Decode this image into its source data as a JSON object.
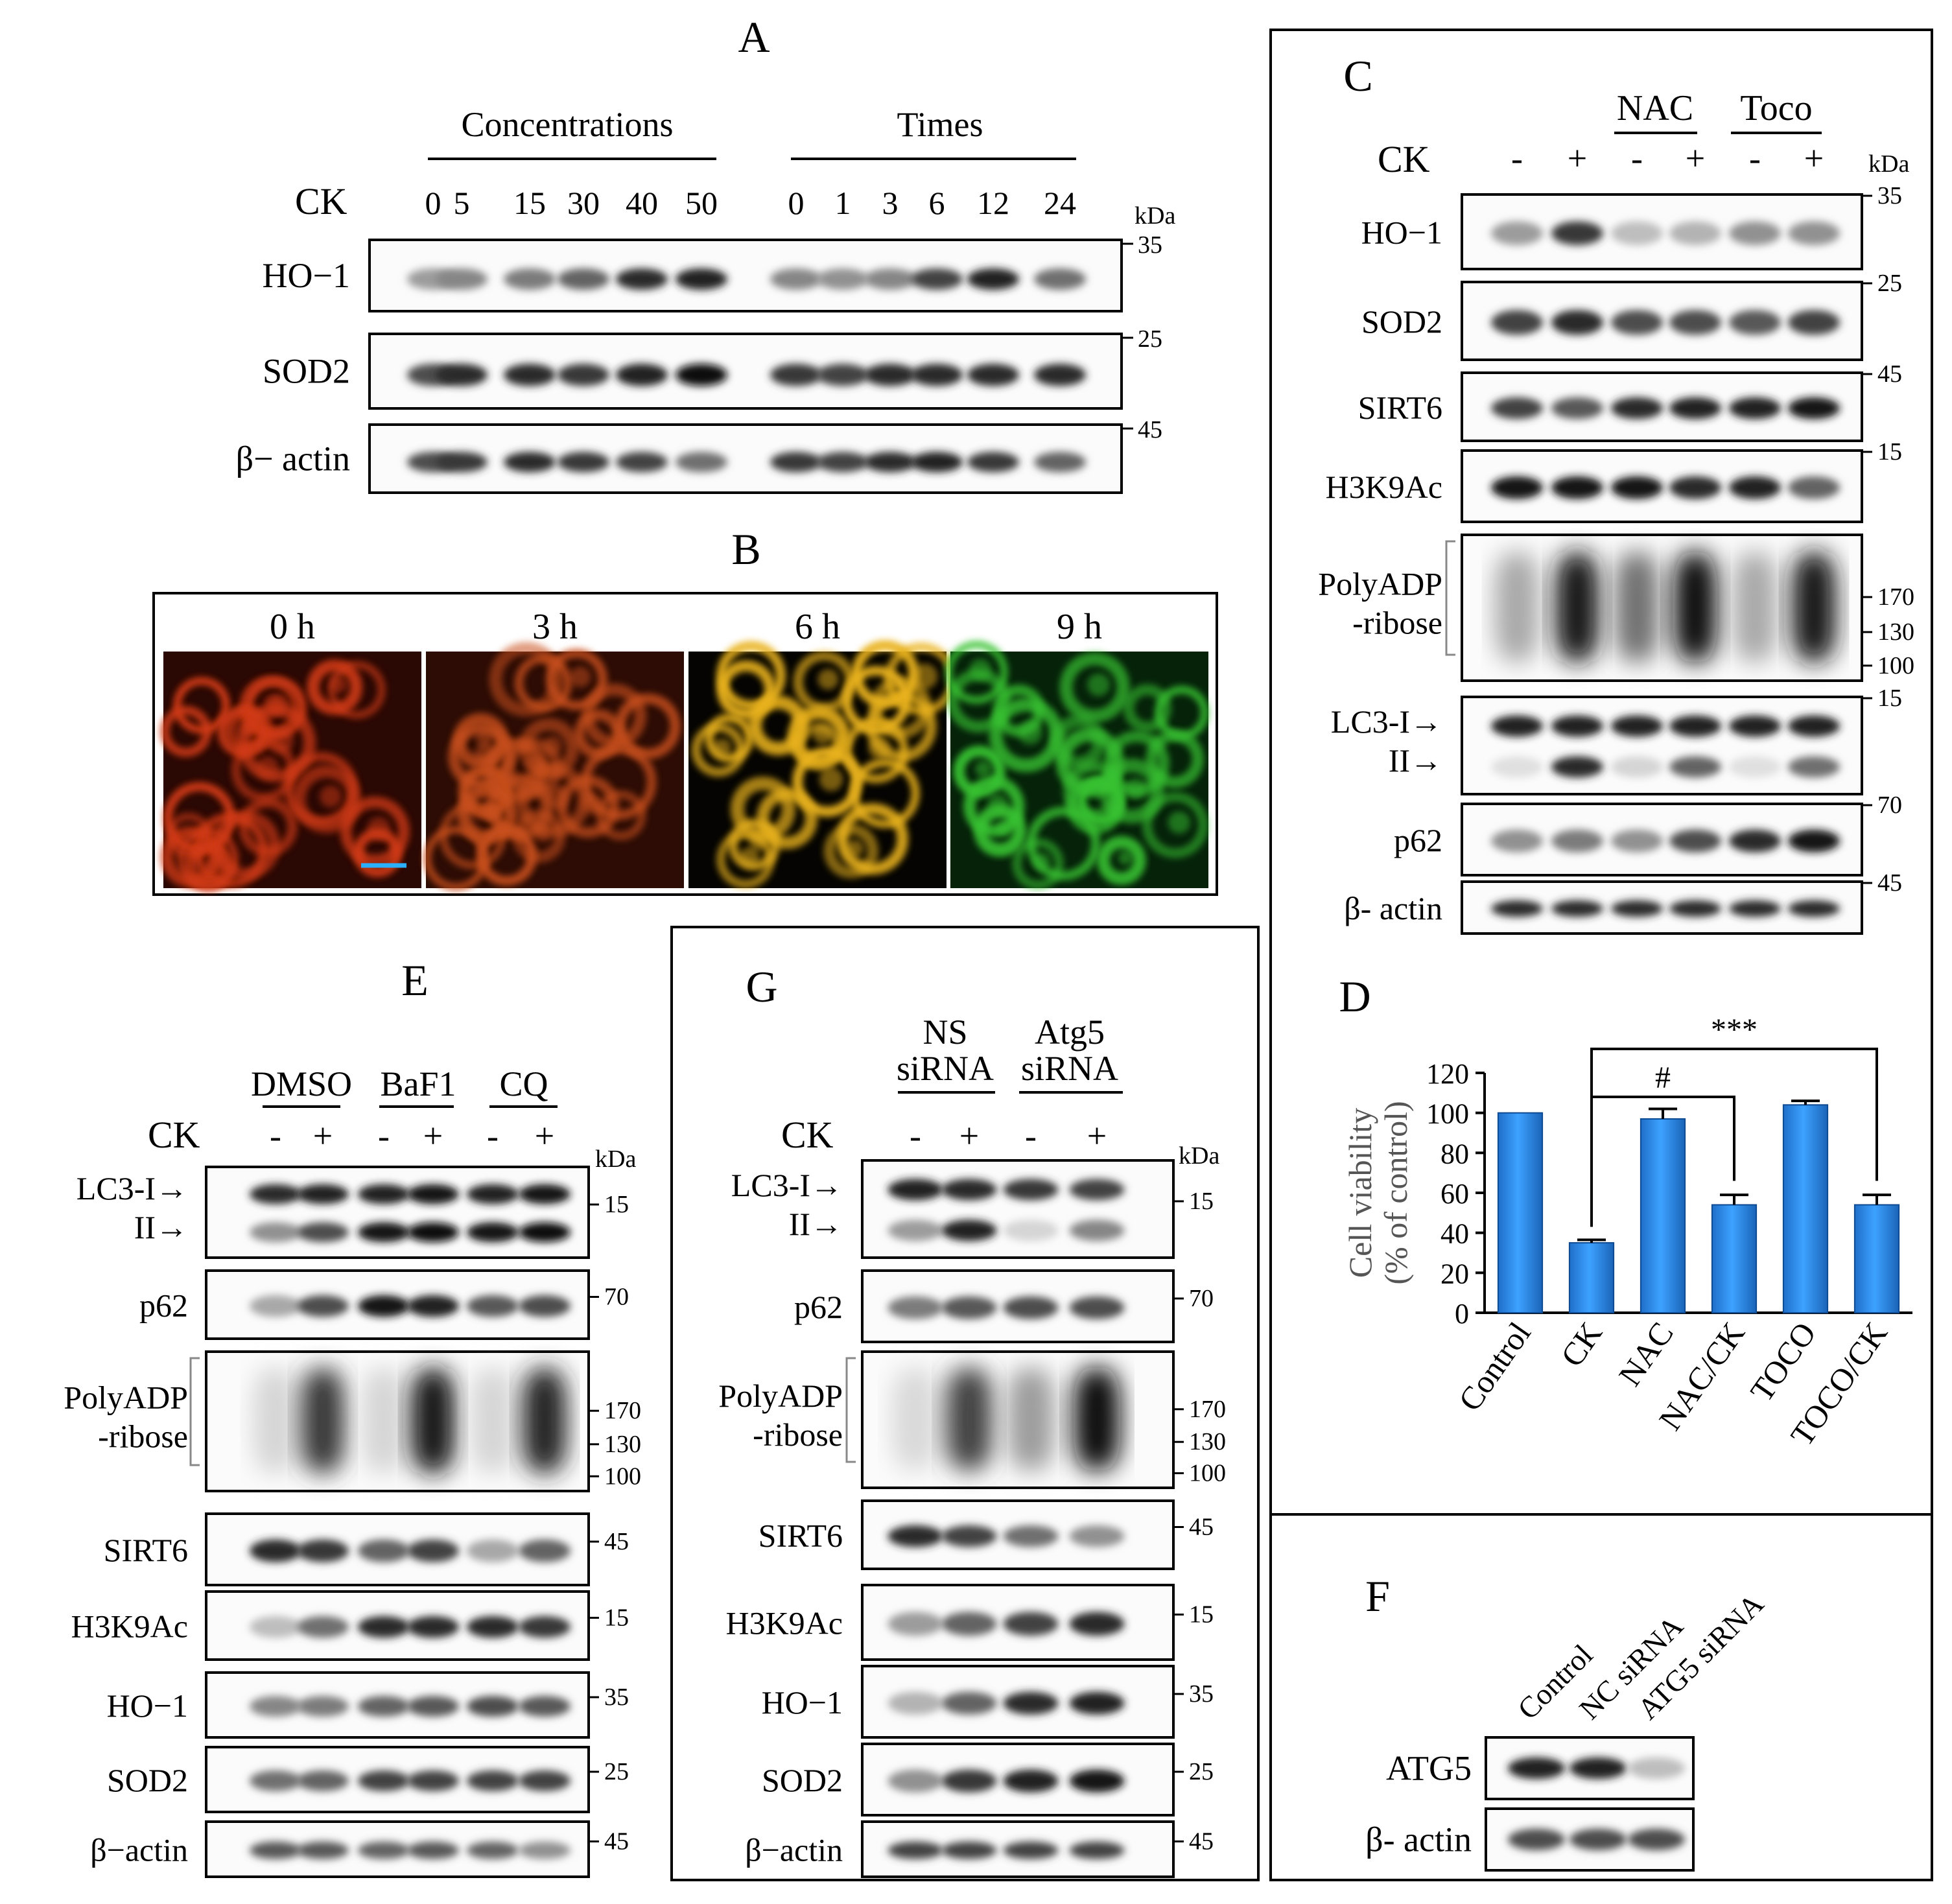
{
  "panelA": {
    "letter": "A",
    "groups": [
      "Concentrations",
      "Times"
    ],
    "treatment": "CK",
    "conc_lanes": [
      "0",
      "5",
      "15",
      "30",
      "40",
      "50"
    ],
    "time_lanes": [
      "0",
      "1",
      "3",
      "6",
      "12",
      "24"
    ],
    "unit": "kDa",
    "rows": [
      {
        "label": "HO−1",
        "mw": "35",
        "intensity": [
          0.35,
          0.45,
          0.5,
          0.6,
          0.85,
          0.9,
          0.45,
          0.4,
          0.45,
          0.75,
          0.9,
          0.55
        ]
      },
      {
        "label": "SOD2",
        "mw": "25",
        "intensity": [
          0.7,
          0.85,
          0.85,
          0.8,
          0.9,
          1.0,
          0.8,
          0.75,
          0.85,
          0.85,
          0.85,
          0.85
        ]
      },
      {
        "label": "β− actin",
        "mw": "45",
        "intensity": [
          0.7,
          0.8,
          0.85,
          0.8,
          0.75,
          0.55,
          0.8,
          0.75,
          0.85,
          0.9,
          0.8,
          0.6
        ]
      }
    ]
  },
  "panelB": {
    "letter": "B",
    "frames": [
      {
        "label": "0 h",
        "color": "#d23a12",
        "bg": "#2a0804"
      },
      {
        "label": "3 h",
        "color": "#c9501c",
        "bg": "#2c0c05"
      },
      {
        "label": "6 h",
        "color": "#e9b21c",
        "bg": "#050402"
      },
      {
        "label": "9 h",
        "color": "#39c233",
        "bg": "#06230a"
      }
    ],
    "scalebar_color": "#2bb0ff"
  },
  "panelC": {
    "letter": "C",
    "groups": [
      "NAC",
      "Toco"
    ],
    "treatment": "CK",
    "lanes": [
      "-",
      "+",
      "-",
      "+",
      "-",
      "+"
    ],
    "unit": "kDa",
    "rows": [
      {
        "label": "HO−1",
        "mw": [
          "35"
        ],
        "intensity": [
          0.35,
          0.8,
          0.2,
          0.25,
          0.4,
          0.4
        ]
      },
      {
        "label": "SOD2",
        "mw": [
          "25"
        ],
        "intensity": [
          0.75,
          0.85,
          0.7,
          0.7,
          0.65,
          0.75
        ]
      },
      {
        "label": "SIRT6",
        "mw": [
          "45"
        ],
        "intensity": [
          0.75,
          0.65,
          0.85,
          0.9,
          0.9,
          0.95
        ]
      },
      {
        "label": "H3K9Ac",
        "mw": [
          "15"
        ],
        "intensity": [
          0.95,
          0.95,
          0.95,
          0.85,
          0.9,
          0.6
        ]
      },
      {
        "label": "PolyADP\n-ribose",
        "mw": [
          "170",
          "130",
          "100"
        ],
        "intensity": [
          0.3,
          0.95,
          0.55,
          1.0,
          0.3,
          0.95
        ]
      },
      {
        "label": "LC3-I→\nII→",
        "mw": [
          "15"
        ],
        "intensity": [
          0.9,
          0.9,
          0.9,
          0.9,
          0.9,
          0.9
        ],
        "intensity2": [
          0.05,
          0.85,
          0.1,
          0.6,
          0.05,
          0.55
        ]
      },
      {
        "label": "p62",
        "mw": [
          "70"
        ],
        "intensity": [
          0.4,
          0.5,
          0.4,
          0.7,
          0.85,
          0.95
        ]
      },
      {
        "label": "β- actin",
        "mw": [
          "45"
        ],
        "intensity": [
          0.85,
          0.85,
          0.85,
          0.85,
          0.85,
          0.85
        ]
      }
    ]
  },
  "panelD": {
    "letter": "D",
    "chart_data": {
      "type": "bar",
      "categories": [
        "Control",
        "CK",
        "NAC",
        "NAC/CK",
        "TOCO",
        "TOCO/CK"
      ],
      "values": [
        100,
        35,
        97,
        54,
        104,
        54
      ],
      "errors": [
        0,
        1.5,
        5,
        5,
        2,
        5
      ],
      "ylabel": "Cell viability\n(% of control)",
      "ylim": [
        0,
        120
      ],
      "yticks": [
        "0",
        "20",
        "40",
        "60",
        "80",
        "100",
        "120"
      ],
      "annotations": [
        "#",
        "***"
      ],
      "bar_color": "#2e8fe6"
    }
  },
  "panelE": {
    "letter": "E",
    "groups": [
      "DMSO",
      "BaF1",
      "CQ"
    ],
    "treatment": "CK",
    "lanes": [
      "-",
      "+",
      "-",
      "+",
      "-",
      "+"
    ],
    "unit": "kDa",
    "rows": [
      {
        "label": "LC3-I→\nII→",
        "mw": [
          "15"
        ],
        "intensity": [
          0.85,
          0.9,
          0.9,
          0.95,
          0.9,
          0.95
        ],
        "intensity2": [
          0.4,
          0.7,
          0.95,
          1.0,
          0.95,
          1.0
        ]
      },
      {
        "label": "p62",
        "mw": [
          "70"
        ],
        "intensity": [
          0.3,
          0.7,
          0.95,
          0.9,
          0.65,
          0.7
        ]
      },
      {
        "label": "PolyADP\n-ribose",
        "mw": [
          "170",
          "130",
          "100"
        ],
        "intensity": [
          0.1,
          0.8,
          0.1,
          0.95,
          0.1,
          0.9
        ]
      },
      {
        "label": "SIRT6",
        "mw": [
          "45"
        ],
        "intensity": [
          0.85,
          0.8,
          0.6,
          0.75,
          0.3,
          0.6
        ]
      },
      {
        "label": "H3K9Ac",
        "mw": [
          "15"
        ],
        "intensity": [
          0.2,
          0.55,
          0.85,
          0.85,
          0.85,
          0.8
        ]
      },
      {
        "label": "HO−1",
        "mw": [
          "35"
        ],
        "intensity": [
          0.45,
          0.5,
          0.6,
          0.65,
          0.7,
          0.65
        ]
      },
      {
        "label": "SOD2",
        "mw": [
          "25"
        ],
        "intensity": [
          0.55,
          0.6,
          0.75,
          0.75,
          0.75,
          0.75
        ]
      },
      {
        "label": "β−actin",
        "mw": [
          "45"
        ],
        "intensity": [
          0.65,
          0.65,
          0.6,
          0.65,
          0.6,
          0.4
        ]
      }
    ]
  },
  "panelF": {
    "letter": "F",
    "lanes": [
      "Control",
      "NC siRNA",
      "ATG5 siRNA"
    ],
    "rows": [
      {
        "label": "ATG5",
        "intensity": [
          0.9,
          0.9,
          0.2
        ]
      },
      {
        "label": "β- actin",
        "intensity": [
          0.7,
          0.7,
          0.7
        ]
      }
    ]
  },
  "panelG": {
    "letter": "G",
    "groups": [
      "NS\nsiRNA",
      "Atg5\nsiRNA"
    ],
    "treatment": "CK",
    "lanes": [
      "-",
      "+",
      "-",
      "+"
    ],
    "unit": "kDa",
    "rows": [
      {
        "label": "LC3-I→\nII→",
        "mw": [
          "15"
        ],
        "intensity": [
          0.9,
          0.85,
          0.8,
          0.75
        ],
        "intensity2": [
          0.35,
          0.9,
          0.1,
          0.45
        ]
      },
      {
        "label": "p62",
        "mw": [
          "70"
        ],
        "intensity": [
          0.5,
          0.65,
          0.7,
          0.7
        ]
      },
      {
        "label": "PolyADP\n-ribose",
        "mw": [
          "170",
          "130",
          "100"
        ],
        "intensity": [
          0.08,
          0.75,
          0.35,
          1.0
        ]
      },
      {
        "label": "SIRT6",
        "mw": [
          "45"
        ],
        "intensity": [
          0.85,
          0.75,
          0.55,
          0.4
        ]
      },
      {
        "label": "H3K9Ac",
        "mw": [
          "15"
        ],
        "intensity": [
          0.35,
          0.6,
          0.75,
          0.85
        ]
      },
      {
        "label": "HO−1",
        "mw": [
          "35"
        ],
        "intensity": [
          0.25,
          0.6,
          0.85,
          0.9
        ]
      },
      {
        "label": "SOD2",
        "mw": [
          "25"
        ],
        "intensity": [
          0.4,
          0.8,
          0.9,
          0.95
        ]
      },
      {
        "label": "β−actin",
        "mw": [
          "45"
        ],
        "intensity": [
          0.75,
          0.75,
          0.75,
          0.75
        ]
      }
    ]
  }
}
